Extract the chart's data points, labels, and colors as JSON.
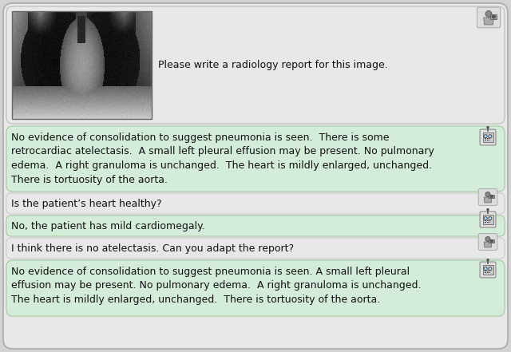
{
  "fig_width": 6.4,
  "fig_height": 4.41,
  "outer_bg": "#d3d3d3",
  "panel_bg": "#e8e8e8",
  "user_bg": "#e8e8e8",
  "ai_bg": "#d4edda",
  "border_color": "#b0b0b0",
  "green_border": "#a8c8a0",
  "text_color": "#111111",
  "msg1_user_text": "Please write a radiology report for this image.",
  "msg2_ai_text": "No evidence of consolidation to suggest pneumonia is seen.  There is some\nretrocardiac atelectasis.  A small left pleural effusion may be present. No pulmonary\nedema.  A right granuloma is unchanged.  The heart is mildly enlarged, unchanged.\nThere is tortuosity of the aorta.",
  "msg3_user_text": "Is the patient’s heart healthy?",
  "msg4_ai_text": "No, the patient has mild cardiomegaly.",
  "msg5_user_text": "I think there is no atelectasis. Can you adapt the report?",
  "msg6_ai_text": "No evidence of consolidation to suggest pneumonia is seen. A small left pleural\neffusion may be present. No pulmonary edema.  A right granuloma is unchanged.\nThe heart is mildly enlarged, unchanged.  There is tortuosity of the aorta.",
  "font_size_large": 9.0,
  "font_size_small": 8.5
}
